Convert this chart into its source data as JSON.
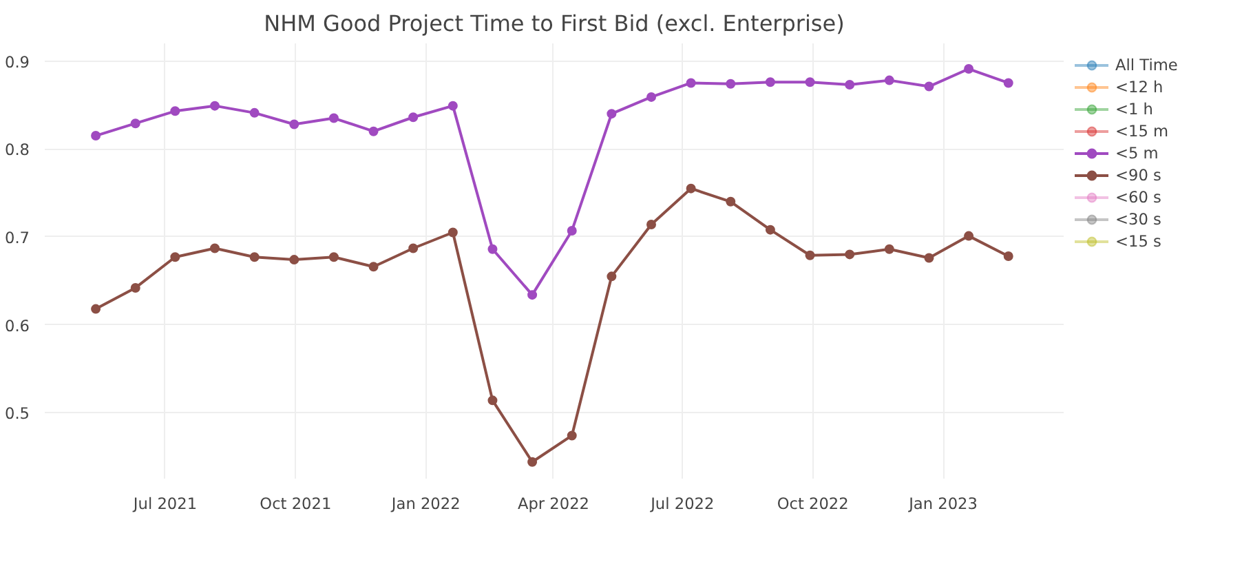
{
  "chart_data": {
    "type": "line",
    "title": "NHM Good Project Time to First Bid (excl. Enterprise)",
    "x": [
      "2021-05-13",
      "2021-06-10",
      "2021-07-08",
      "2021-08-05",
      "2021-09-02",
      "2021-09-30",
      "2021-10-28",
      "2021-11-25",
      "2021-12-23",
      "2022-01-20",
      "2022-02-17",
      "2022-03-17",
      "2022-04-14",
      "2022-05-12",
      "2022-06-09",
      "2022-07-07",
      "2022-08-04",
      "2022-09-01",
      "2022-09-29",
      "2022-10-27",
      "2022-11-24",
      "2022-12-22",
      "2023-01-19",
      "2023-02-16"
    ],
    "series": [
      {
        "name": "All Time",
        "color": "#1f77b4",
        "values": [
          null,
          null,
          null,
          null,
          null,
          null,
          null,
          null,
          null,
          null,
          null,
          null,
          null,
          null,
          null,
          null,
          null,
          null,
          null,
          null,
          null,
          null,
          null,
          null
        ]
      },
      {
        "name": "<12 h",
        "color": "#ff7f0e",
        "values": [
          null,
          null,
          null,
          null,
          null,
          null,
          null,
          null,
          null,
          null,
          null,
          null,
          null,
          null,
          null,
          null,
          null,
          null,
          null,
          null,
          null,
          null,
          null,
          null
        ]
      },
      {
        "name": "<1 h",
        "color": "#2ca02c",
        "values": [
          null,
          null,
          null,
          null,
          null,
          null,
          null,
          null,
          null,
          null,
          null,
          null,
          null,
          null,
          null,
          null,
          null,
          null,
          null,
          null,
          null,
          null,
          null,
          null
        ]
      },
      {
        "name": "<15 m",
        "color": "#d62728",
        "values": [
          null,
          null,
          null,
          null,
          null,
          null,
          null,
          null,
          null,
          null,
          null,
          null,
          null,
          null,
          null,
          null,
          null,
          null,
          null,
          null,
          null,
          null,
          null,
          null
        ]
      },
      {
        "name": "<5 m",
        "color": "#a04ac0",
        "values": [
          0.815,
          0.829,
          0.843,
          0.849,
          0.841,
          0.828,
          0.835,
          0.82,
          0.836,
          0.849,
          0.686,
          0.634,
          0.707,
          0.84,
          0.859,
          0.875,
          0.874,
          0.876,
          0.876,
          0.873,
          0.878,
          0.871,
          0.891,
          0.875
        ]
      },
      {
        "name": "<90 s",
        "color": "#8c4f45",
        "values": [
          0.618,
          0.642,
          0.677,
          0.687,
          0.677,
          0.674,
          0.677,
          0.666,
          0.687,
          0.705,
          0.514,
          0.444,
          0.474,
          0.655,
          0.714,
          0.755,
          0.74,
          0.708,
          0.679,
          0.68,
          0.686,
          0.676,
          0.701,
          0.678
        ]
      },
      {
        "name": "<60 s",
        "color": "#e377c2",
        "values": [
          null,
          null,
          null,
          null,
          null,
          null,
          null,
          null,
          null,
          null,
          null,
          null,
          null,
          null,
          null,
          null,
          null,
          null,
          null,
          null,
          null,
          null,
          null,
          null
        ]
      },
      {
        "name": "<30 s",
        "color": "#7f7f7f",
        "values": [
          null,
          null,
          null,
          null,
          null,
          null,
          null,
          null,
          null,
          null,
          null,
          null,
          null,
          null,
          null,
          null,
          null,
          null,
          null,
          null,
          null,
          null,
          null,
          null
        ]
      },
      {
        "name": "<15 s",
        "color": "#bcbd22",
        "values": [
          null,
          null,
          null,
          null,
          null,
          null,
          null,
          null,
          null,
          null,
          null,
          null,
          null,
          null,
          null,
          null,
          null,
          null,
          null,
          null,
          null,
          null,
          null,
          null
        ]
      }
    ],
    "xlim": [
      "2021-04-07",
      "2023-03-27"
    ],
    "xticks": [
      {
        "value": "2021-07-01",
        "label": "Jul 2021"
      },
      {
        "value": "2021-10-01",
        "label": "Oct 2021"
      },
      {
        "value": "2022-01-01",
        "label": "Jan 2022"
      },
      {
        "value": "2022-04-01",
        "label": "Apr 2022"
      },
      {
        "value": "2022-07-01",
        "label": "Jul 2022"
      },
      {
        "value": "2022-10-01",
        "label": "Oct 2022"
      },
      {
        "value": "2023-01-01",
        "label": "Jan 2023"
      }
    ],
    "ylim": [
      0.425,
      0.92
    ],
    "yticks": [
      0.5,
      0.6,
      0.7,
      0.8,
      0.9
    ],
    "grid": true,
    "legend": "top right",
    "marker": "circle",
    "line_style": "solid"
  }
}
